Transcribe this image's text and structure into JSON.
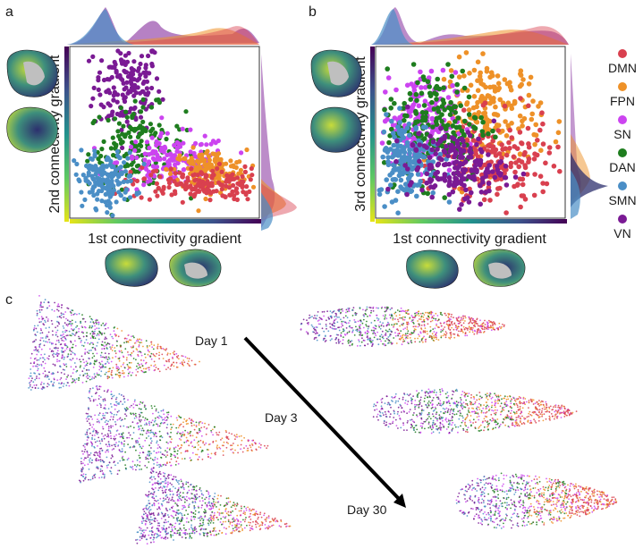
{
  "panels": {
    "a": "a",
    "b": "b",
    "c": "c"
  },
  "legend": [
    {
      "name": "DMN",
      "color": "#d9404f"
    },
    {
      "name": "FPN",
      "color": "#ee9128"
    },
    {
      "name": "SN",
      "color": "#cc44f0"
    },
    {
      "name": "DAN",
      "color": "#1e7d1e"
    },
    {
      "name": "SMN",
      "color": "#4a8ec6"
    },
    {
      "name": "VN",
      "color": "#7a1a94"
    }
  ],
  "colormap": [
    "#e6e418",
    "#5ec962",
    "#21918c",
    "#3b528b",
    "#440154"
  ],
  "brain_colors": {
    "cortex_dark": "#2c2f6e",
    "cortex_mid": "#3e8f7c",
    "cortex_light": "#b7d33d",
    "medial": "#bfbfbf"
  },
  "day_labels": [
    "Day 1",
    "Day 3",
    "Day 30"
  ],
  "chart_data": [
    {
      "type": "scatter",
      "panel": "a",
      "xlabel": "1st connectivity gradient",
      "ylabel": "2nd connectivity gradient",
      "series": [
        {
          "name": "VN",
          "cloud": {
            "cx": 0.3,
            "cy": 0.78,
            "sx": 0.09,
            "sy": 0.14
          }
        },
        {
          "name": "DAN",
          "cloud": {
            "cx": 0.35,
            "cy": 0.42,
            "sx": 0.13,
            "sy": 0.12
          }
        },
        {
          "name": "SN",
          "cloud": {
            "cx": 0.55,
            "cy": 0.33,
            "sx": 0.15,
            "sy": 0.08
          }
        },
        {
          "name": "FPN",
          "cloud": {
            "cx": 0.74,
            "cy": 0.28,
            "sx": 0.1,
            "sy": 0.06
          }
        },
        {
          "name": "DMN",
          "cloud": {
            "cx": 0.68,
            "cy": 0.2,
            "sx": 0.18,
            "sy": 0.05
          }
        },
        {
          "name": "SMN",
          "cloud": {
            "cx": 0.18,
            "cy": 0.22,
            "sx": 0.08,
            "sy": 0.08
          }
        }
      ],
      "grid": false,
      "legend_position": "right"
    },
    {
      "type": "scatter",
      "panel": "b",
      "xlabel": "1st connectivity gradient",
      "ylabel": "3rd connectivity gradient",
      "series": [
        {
          "name": "FPN",
          "cloud": {
            "cx": 0.62,
            "cy": 0.62,
            "sx": 0.13,
            "sy": 0.16
          }
        },
        {
          "name": "DMN",
          "cloud": {
            "cx": 0.64,
            "cy": 0.3,
            "sx": 0.15,
            "sy": 0.14
          }
        },
        {
          "name": "SN",
          "cloud": {
            "cx": 0.22,
            "cy": 0.58,
            "sx": 0.1,
            "sy": 0.14
          }
        },
        {
          "name": "DAN",
          "cloud": {
            "cx": 0.32,
            "cy": 0.55,
            "sx": 0.14,
            "sy": 0.17
          }
        },
        {
          "name": "SMN",
          "cloud": {
            "cx": 0.16,
            "cy": 0.35,
            "sx": 0.08,
            "sy": 0.12
          }
        },
        {
          "name": "VN",
          "cloud": {
            "cx": 0.42,
            "cy": 0.3,
            "sx": 0.13,
            "sy": 0.1
          }
        }
      ],
      "grid": false,
      "legend_position": "right"
    }
  ]
}
